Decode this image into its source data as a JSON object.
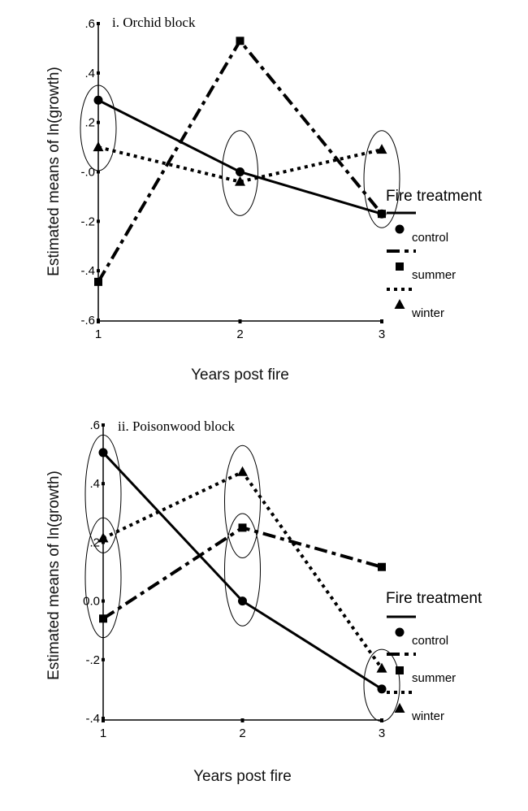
{
  "chart_data": [
    {
      "type": "line",
      "title": "i. Orchid block",
      "xlabel": "Years post fire",
      "ylabel": "Estimated means of ln(growth)",
      "x": [
        1,
        2,
        3
      ],
      "x_tick_labels": [
        "1",
        "2",
        "3"
      ],
      "ylim": [
        -0.6,
        0.6
      ],
      "y_ticks": [
        0.6,
        0.4,
        0.2,
        0.0,
        -0.2,
        -0.4,
        -0.6
      ],
      "y_tick_labels": [
        ".6",
        ".4",
        ".2",
        "-.0",
        "-.2",
        "-.4",
        "-.6"
      ],
      "legend": {
        "title": "Fire treatment",
        "placement": "right"
      },
      "series": [
        {
          "name": "control",
          "marker": "circle",
          "line": "solid",
          "values": [
            0.29,
            0.0,
            -0.17
          ]
        },
        {
          "name": "summer",
          "marker": "square",
          "line": "dash-dot",
          "values": [
            -0.445,
            0.53,
            -0.17
          ]
        },
        {
          "name": "winter",
          "marker": "triangle",
          "line": "dotted",
          "values": [
            0.1,
            -0.04,
            0.09
          ]
        }
      ],
      "ellipses": [
        {
          "x": 1,
          "y_low": 0.005,
          "y_high": 0.35
        },
        {
          "x": 2,
          "y_low": -0.177,
          "y_high": 0.167
        },
        {
          "x": 3,
          "y_low": -0.226,
          "y_high": 0.167
        }
      ]
    },
    {
      "type": "line",
      "title": "ii. Poisonwood block",
      "xlabel": "Years post fire",
      "ylabel": "Estimated means of ln(growth)",
      "x": [
        1,
        2,
        3
      ],
      "x_tick_labels": [
        "1",
        "2",
        "3"
      ],
      "ylim": [
        -0.4,
        0.6
      ],
      "y_ticks": [
        0.6,
        0.4,
        0.2,
        0.0,
        -0.2,
        -0.4
      ],
      "y_tick_labels": [
        ".6",
        ".4",
        ".2",
        "0.0",
        "-.2",
        "-.4"
      ],
      "legend": {
        "title": "Fire treatment",
        "placement": "right"
      },
      "series": [
        {
          "name": "control",
          "marker": "circle",
          "line": "solid",
          "values": [
            0.506,
            0.0,
            -0.3
          ]
        },
        {
          "name": "summer",
          "marker": "square",
          "line": "dash-dot",
          "values": [
            -0.06,
            0.25,
            0.116
          ]
        },
        {
          "name": "winter",
          "marker": "triangle",
          "line": "dotted",
          "values": [
            0.214,
            0.44,
            -0.23
          ]
        }
      ],
      "ellipses": [
        {
          "x": 1,
          "y_low": 0.164,
          "y_high": 0.566
        },
        {
          "x": 1,
          "y_low": -0.125,
          "y_high": 0.284
        },
        {
          "x": 2,
          "y_low": 0.147,
          "y_high": 0.53
        },
        {
          "x": 2,
          "y_low": -0.085,
          "y_high": 0.298
        },
        {
          "x": 3,
          "y_low": -0.41,
          "y_high": -0.165
        }
      ]
    }
  ]
}
